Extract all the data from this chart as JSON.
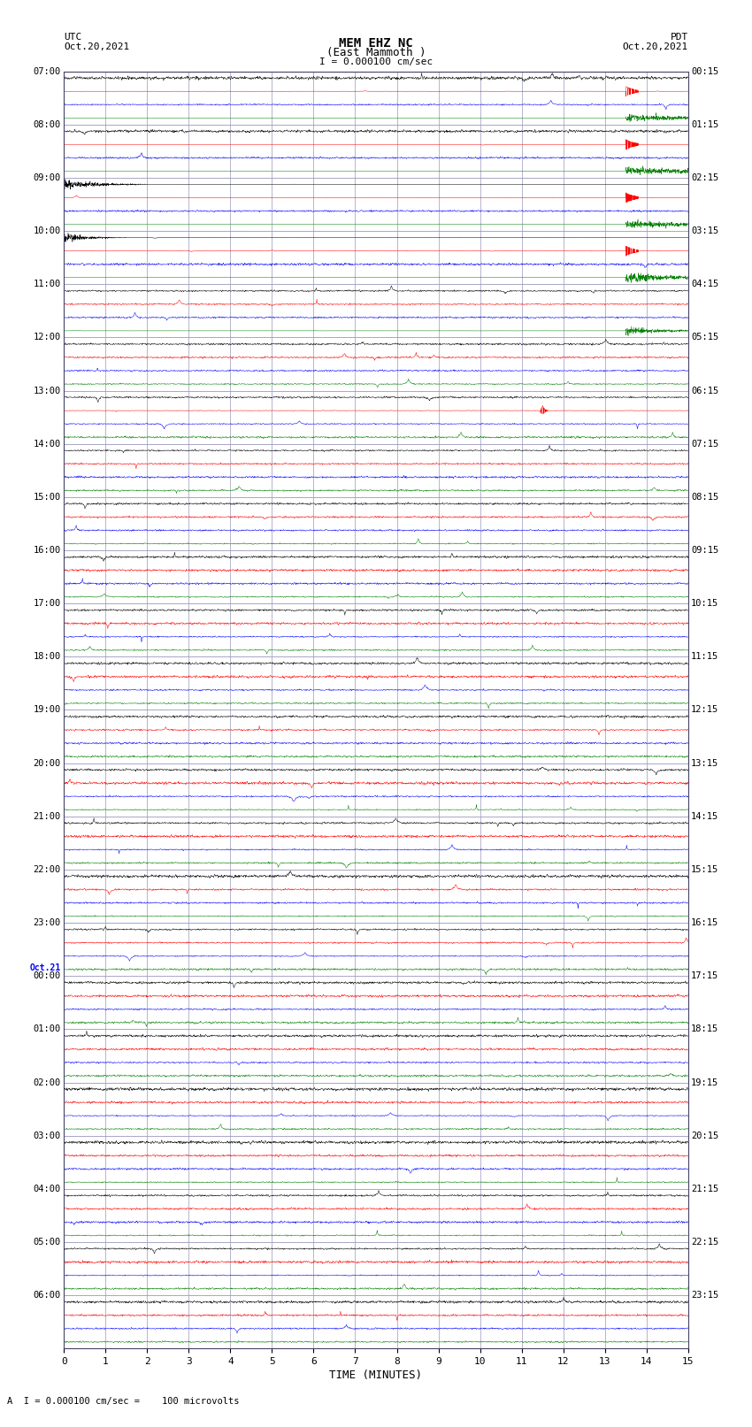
{
  "title_line1": "MEM EHZ NC",
  "title_line2": "(East Mammoth )",
  "scale_label": "I = 0.000100 cm/sec",
  "left_header_line1": "UTC",
  "left_header_line2": "Oct.20,2021",
  "right_header_line1": "PDT",
  "right_header_line2": "Oct.20,2021",
  "bottom_label": "TIME (MINUTES)",
  "bottom_note": "A  I = 0.000100 cm/sec =    100 microvolts",
  "xlabel_ticks": [
    0,
    1,
    2,
    3,
    4,
    5,
    6,
    7,
    8,
    9,
    10,
    11,
    12,
    13,
    14,
    15
  ],
  "utc_labels": [
    "07:00",
    "08:00",
    "09:00",
    "10:00",
    "11:00",
    "12:00",
    "13:00",
    "14:00",
    "15:00",
    "16:00",
    "17:00",
    "18:00",
    "19:00",
    "20:00",
    "21:00",
    "22:00",
    "23:00",
    "00:00",
    "01:00",
    "02:00",
    "03:00",
    "04:00",
    "05:00",
    "06:00"
  ],
  "utc_label_special_idx": 17,
  "pdt_labels": [
    "00:15",
    "01:15",
    "02:15",
    "03:15",
    "04:15",
    "05:15",
    "06:15",
    "07:15",
    "08:15",
    "09:15",
    "10:15",
    "11:15",
    "12:15",
    "13:15",
    "14:15",
    "15:15",
    "16:15",
    "17:15",
    "18:15",
    "19:15",
    "20:15",
    "21:15",
    "22:15",
    "23:15"
  ],
  "n_rows": 24,
  "n_cols": 4,
  "colors": [
    "black",
    "red",
    "blue",
    "green"
  ],
  "bg_color": "#ffffff",
  "plot_bg": "#ffffff",
  "grid_color": "#9999bb",
  "figsize": [
    8.5,
    16.13
  ],
  "dpi": 100,
  "base_noise": 0.06,
  "quake_green_rows": [
    0,
    1,
    2,
    3,
    4
  ],
  "quake_red_rows": [
    0,
    1,
    2,
    3
  ],
  "quake_time": 13.5,
  "quake_green_amp": [
    15,
    25,
    18,
    8,
    3
  ],
  "quake_red_amp": [
    6,
    4,
    3,
    2
  ]
}
